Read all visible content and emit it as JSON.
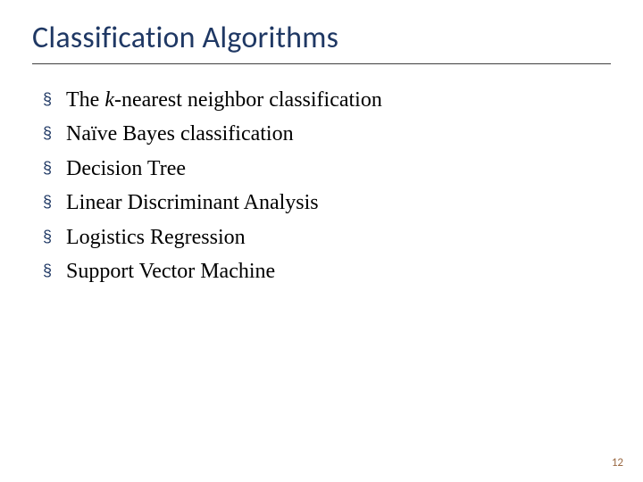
{
  "slide": {
    "title": "Classification Algorithms",
    "title_color": "#1f3864",
    "title_fontsize": 34,
    "rule_color": "#404040",
    "bullet_mark": "§",
    "bullet_mark_color": "#1f3864",
    "bullet_fontsize": 24,
    "bullet_text_color": "#000000",
    "items": [
      {
        "prefix": "The ",
        "italic": "k",
        "suffix": "-nearest neighbor classification"
      },
      {
        "prefix": "Naïve Bayes classification",
        "italic": "",
        "suffix": ""
      },
      {
        "prefix": "Decision Tree",
        "italic": "",
        "suffix": ""
      },
      {
        "prefix": "Linear Discriminant Analysis",
        "italic": "",
        "suffix": ""
      },
      {
        "prefix": "Logistics Regression",
        "italic": "",
        "suffix": ""
      },
      {
        "prefix": "Support Vector Machine",
        "italic": "",
        "suffix": ""
      }
    ],
    "page_number": "12",
    "page_number_color": "#9b6a44",
    "background_color": "#ffffff"
  }
}
